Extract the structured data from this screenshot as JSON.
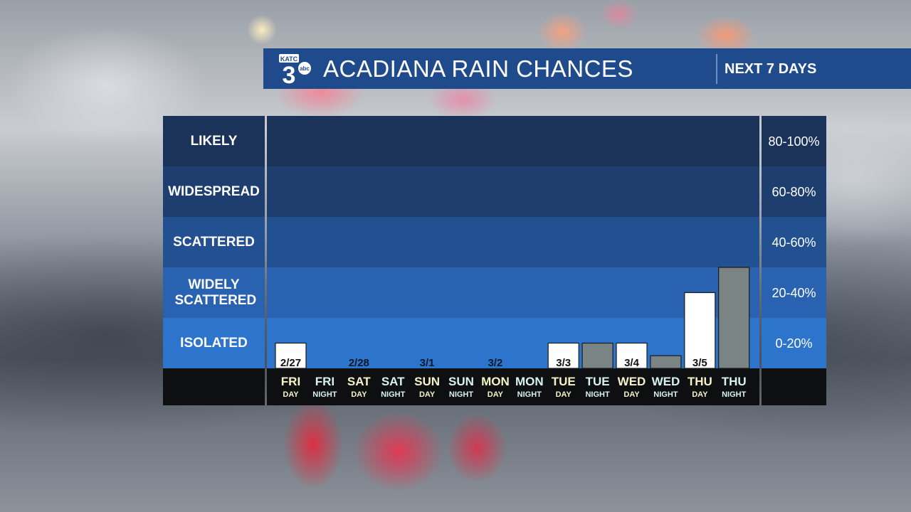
{
  "header": {
    "logo_station": "KATC",
    "logo_number": "3",
    "logo_network": "abc",
    "title": "ACADIANA RAIN CHANCES",
    "subtitle": "NEXT 7 DAYS"
  },
  "colors": {
    "header_bg": "#1f4a8c",
    "bar_day": "#ffffff",
    "bar_night": "#7a8484",
    "label_day": "#f6f2c8",
    "label_night": "#d8f2f2"
  },
  "chart_data": {
    "type": "bar",
    "ylabel": "",
    "ylim": [
      0,
      100
    ],
    "bands": [
      {
        "name": "LIKELY",
        "range": "80-100%"
      },
      {
        "name": "WIDESPREAD",
        "range": "60-80%"
      },
      {
        "name": "SCATTERED",
        "range": "40-60%"
      },
      {
        "name": "WIDELY SCATTERED",
        "range": "20-40%"
      },
      {
        "name": "ISOLATED",
        "range": "0-20%"
      }
    ],
    "periods": [
      {
        "day": "FRI",
        "part": "DAY",
        "date": "2/27",
        "value": 10
      },
      {
        "day": "FRI",
        "part": "NIGHT",
        "date": "",
        "value": 0
      },
      {
        "day": "SAT",
        "part": "DAY",
        "date": "2/28",
        "value": 0
      },
      {
        "day": "SAT",
        "part": "NIGHT",
        "date": "",
        "value": 0
      },
      {
        "day": "SUN",
        "part": "DAY",
        "date": "3/1",
        "value": 0
      },
      {
        "day": "SUN",
        "part": "NIGHT",
        "date": "",
        "value": 0
      },
      {
        "day": "MON",
        "part": "DAY",
        "date": "3/2",
        "value": 0
      },
      {
        "day": "MON",
        "part": "NIGHT",
        "date": "",
        "value": 0
      },
      {
        "day": "TUE",
        "part": "DAY",
        "date": "3/3",
        "value": 10
      },
      {
        "day": "TUE",
        "part": "NIGHT",
        "date": "",
        "value": 10
      },
      {
        "day": "WED",
        "part": "DAY",
        "date": "3/4",
        "value": 10
      },
      {
        "day": "WED",
        "part": "NIGHT",
        "date": "",
        "value": 5
      },
      {
        "day": "THU",
        "part": "DAY",
        "date": "3/5",
        "value": 30
      },
      {
        "day": "THU",
        "part": "NIGHT",
        "date": "",
        "value": 40
      }
    ]
  }
}
